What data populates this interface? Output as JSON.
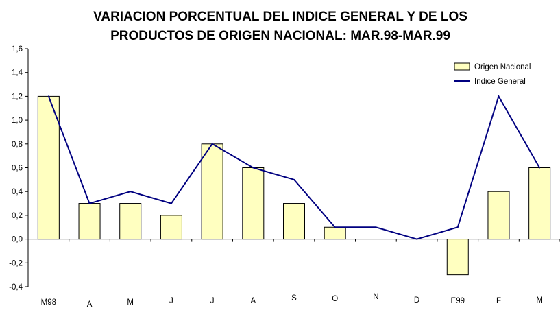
{
  "chart_data": {
    "type": "bar",
    "title_lines": [
      "VARIACION PORCENTUAL DEL INDICE GENERAL Y DE LOS",
      "PRODUCTOS DE ORIGEN NACIONAL: MAR.98-MAR.99"
    ],
    "categories": [
      "M98",
      "A",
      "M",
      "J",
      "J",
      "A",
      "S",
      "O",
      "N",
      "D",
      "E99",
      "F",
      "M"
    ],
    "ylim": [
      -0.4,
      1.6
    ],
    "y_ticks": [
      "1,6",
      "1,4",
      "1,2",
      "1,0",
      "0,8",
      "0,6",
      "0,4",
      "0,2",
      "0,0",
      "-0,2",
      "-0,4"
    ],
    "series": [
      {
        "name": "Origen Nacional",
        "type": "bar",
        "color": "#ffffc0",
        "values": [
          1.2,
          0.3,
          0.3,
          0.2,
          0.8,
          0.6,
          0.3,
          0.1,
          0.0,
          0.0,
          -0.3,
          0.4,
          0.6
        ]
      },
      {
        "name": "Indice General",
        "type": "line",
        "color": "#000080",
        "values": [
          1.2,
          0.3,
          0.4,
          0.3,
          0.8,
          0.6,
          0.5,
          0.1,
          0.1,
          0.0,
          0.1,
          1.2,
          0.6
        ]
      }
    ],
    "legend_position": "top-right",
    "grid": false
  }
}
